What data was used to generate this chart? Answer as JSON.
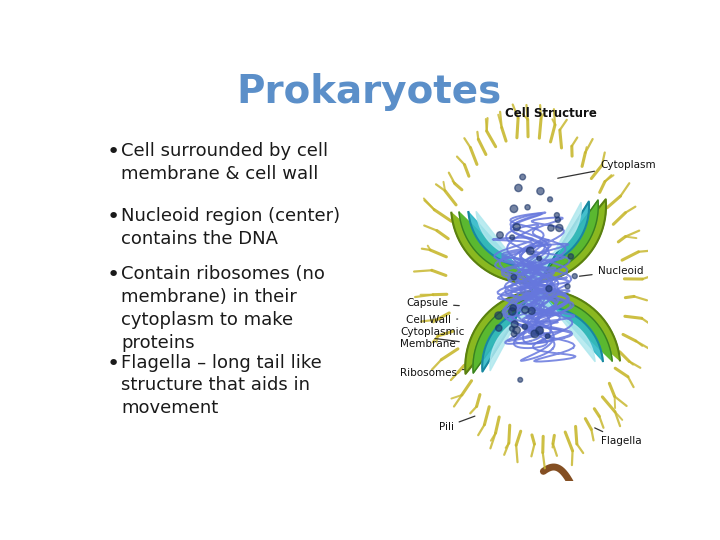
{
  "title": "Prokaryotes",
  "title_color": "#5b8fc9",
  "title_fontsize": 28,
  "title_fontweight": "bold",
  "background_color": "#ffffff",
  "bullet_points": [
    "Cell surrounded by cell\nmembrane & cell wall",
    "Nucleoid region (center)\ncontains the DNA",
    "Contain ribosomes (no\nmembrane) in their\ncytoplasm to make\nproteins",
    "Flagella – long tail like\nstructure that aids in\nmovement"
  ],
  "bullet_fontsize": 13,
  "bullet_color": "#1a1a1a",
  "label_fontsize": 7.5,
  "cell_structure_label": "Cell Structure"
}
